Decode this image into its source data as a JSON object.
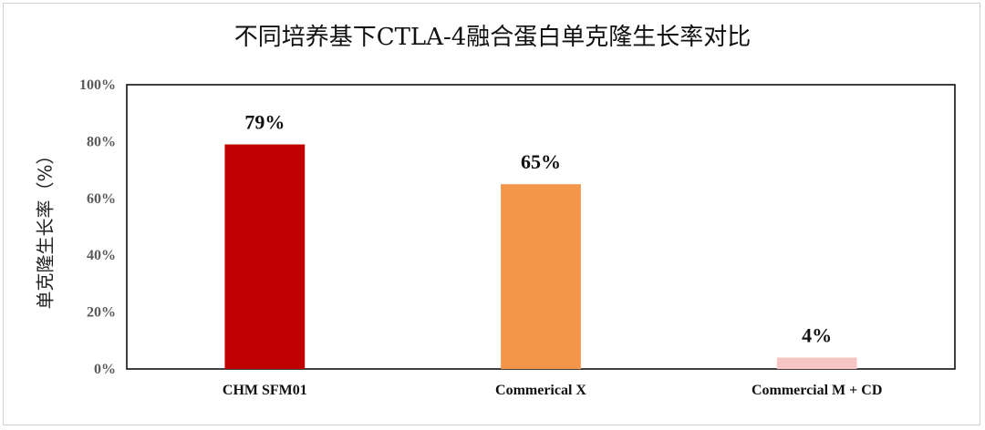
{
  "chart_data": {
    "type": "bar",
    "title": "不同培养基下CTLA-4融合蛋白单克隆生长率对比",
    "xlabel": "",
    "ylabel": "单克隆生长率（%）",
    "categories": [
      "CHM SFM01",
      "Commerical X",
      "Commercial M + CD"
    ],
    "values": [
      79,
      65,
      4
    ],
    "data_labels": [
      "79%",
      "65%",
      "4%"
    ],
    "colors": [
      "#c00000",
      "#f4964a",
      "#f8c5c5"
    ],
    "ylim": [
      0,
      100
    ],
    "yticks": [
      0,
      20,
      40,
      60,
      80,
      100
    ],
    "ytick_labels": [
      "0%",
      "20%",
      "40%",
      "60%",
      "80%",
      "100%"
    ],
    "grid": false,
    "legend": "none"
  }
}
